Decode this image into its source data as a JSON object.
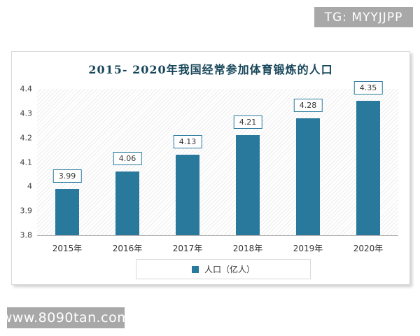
{
  "watermarks": {
    "top_badge": "TG: MYYJJPP",
    "bottom_badge": "www.8090tan.com"
  },
  "chart_data": {
    "type": "bar",
    "title": "2015- 2020年我国经常参加体育锻炼的人口",
    "categories": [
      "2015年",
      "2016年",
      "2017年",
      "2018年",
      "2019年",
      "2020年"
    ],
    "values": [
      3.99,
      4.06,
      4.13,
      4.21,
      4.28,
      4.35
    ],
    "value_labels": [
      "3.99",
      "4.06",
      "4.13",
      "4.21",
      "4.28",
      "4.35"
    ],
    "xlabel": "",
    "ylabel": "",
    "ylim": [
      3.8,
      4.4
    ],
    "ytick_labels": [
      "4.4",
      "4.3",
      "4.2",
      "4.1",
      "4",
      "3.9",
      "3.8"
    ],
    "grid": false,
    "legend": [
      "人口（亿人）"
    ],
    "legend_position": "bottom",
    "bar_color": "#28799c"
  },
  "colors": {
    "bar": "#28799c",
    "title_text": "#17465a",
    "badge_bg": "#a8a8a8",
    "badge_text": "#ffffff",
    "panel_border": "#d9d9d9",
    "legend_border": "#d9d9d9",
    "axis_line": "#b3b3b3",
    "tick_text": "#404040",
    "label_text": "#333333"
  }
}
